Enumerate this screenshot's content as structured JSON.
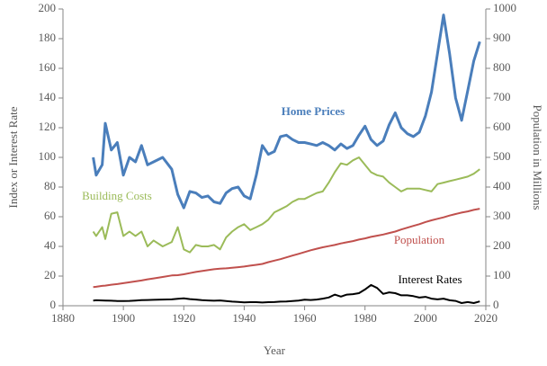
{
  "chart_data": {
    "type": "line",
    "xlabel": "Year",
    "ylabel": "Index or Interest Rate",
    "y2label": "Population in Millions",
    "x": [
      1890,
      1891,
      1893,
      1894,
      1896,
      1898,
      1900,
      1902,
      1904,
      1906,
      1908,
      1910,
      1913,
      1916,
      1918,
      1920,
      1922,
      1924,
      1926,
      1928,
      1930,
      1932,
      1934,
      1936,
      1938,
      1940,
      1942,
      1944,
      1946,
      1948,
      1950,
      1952,
      1954,
      1956,
      1958,
      1960,
      1962,
      1964,
      1966,
      1968,
      1970,
      1972,
      1974,
      1976,
      1978,
      1980,
      1982,
      1984,
      1986,
      1988,
      1990,
      1992,
      1994,
      1996,
      1998,
      2000,
      2002,
      2004,
      2006,
      2008,
      2010,
      2012,
      2014,
      2016,
      2018
    ],
    "series": [
      {
        "name": "Home Prices",
        "color": "#4a7ebb",
        "values": [
          100,
          88,
          95,
          123,
          105,
          110,
          88,
          100,
          97,
          108,
          95,
          97,
          100,
          92,
          75,
          66,
          77,
          76,
          73,
          74,
          70,
          69,
          76,
          79,
          80,
          74,
          72,
          88,
          108,
          102,
          104,
          114,
          115,
          112,
          110,
          110,
          109,
          108,
          110,
          108,
          105,
          109,
          106,
          108,
          115,
          121,
          112,
          108,
          111,
          122,
          130,
          120,
          116,
          114,
          117,
          128,
          144,
          170,
          196,
          170,
          140,
          125,
          145,
          165,
          178
        ]
      },
      {
        "name": "Building Costs",
        "color": "#9bbb59",
        "values": [
          50,
          47,
          53,
          45,
          62,
          63,
          47,
          50,
          47,
          50,
          40,
          44,
          40,
          43,
          53,
          38,
          36,
          41,
          40,
          40,
          41,
          38,
          46,
          50,
          53,
          55,
          51,
          53,
          55,
          58,
          63,
          65,
          67,
          70,
          72,
          72,
          74,
          76,
          77,
          83,
          90,
          96,
          95,
          98,
          100,
          95,
          90,
          88,
          87,
          83,
          80,
          77,
          79,
          79,
          79,
          78,
          77,
          82,
          83,
          84,
          85,
          86,
          87,
          89,
          92
        ]
      },
      {
        "name": "Population",
        "color": "#c0504d",
        "axis": "y2",
        "values": [
          63,
          64,
          67,
          68,
          71,
          73,
          76,
          79,
          82,
          85,
          89,
          92,
          97,
          102,
          103,
          106,
          110,
          114,
          117,
          120,
          123,
          125,
          126,
          128,
          130,
          132,
          135,
          138,
          141,
          147,
          152,
          157,
          163,
          169,
          175,
          181,
          187,
          192,
          197,
          201,
          205,
          210,
          214,
          218,
          223,
          227,
          232,
          236,
          240,
          245,
          250,
          257,
          263,
          269,
          275,
          282,
          288,
          293,
          298,
          304,
          309,
          314,
          318,
          323,
          327
        ]
      },
      {
        "name": "Interest Rates",
        "color": "#000000",
        "values": [
          3.5,
          3.7,
          3.6,
          3.5,
          3.4,
          3.2,
          3.2,
          3.3,
          3.5,
          3.8,
          3.9,
          4,
          4.2,
          4.3,
          4.7,
          5,
          4.5,
          4.2,
          3.8,
          3.6,
          3.4,
          3.6,
          3.2,
          2.8,
          2.6,
          2.3,
          2.4,
          2.4,
          2.2,
          2.4,
          2.5,
          2.8,
          2.9,
          3.2,
          3.5,
          4.1,
          3.9,
          4.2,
          4.8,
          5.6,
          7.5,
          6.2,
          7.5,
          7.8,
          8.5,
          11,
          14,
          12,
          8,
          9,
          8.5,
          7,
          7,
          6.5,
          5.5,
          6,
          4.8,
          4.3,
          4.8,
          3.7,
          3.3,
          1.8,
          2.5,
          1.8,
          2.9
        ]
      }
    ],
    "xlim": [
      1880,
      2020
    ],
    "xticks": [
      1880,
      1900,
      1920,
      1940,
      1960,
      1980,
      2000,
      2020
    ],
    "ylim": [
      0,
      200
    ],
    "yticks": [
      0,
      20,
      40,
      60,
      80,
      100,
      120,
      140,
      160,
      180,
      200
    ],
    "y2lim": [
      0,
      1000
    ],
    "y2ticks": [
      0,
      100,
      200,
      300,
      400,
      500,
      600,
      700,
      800,
      900,
      1000
    ]
  }
}
